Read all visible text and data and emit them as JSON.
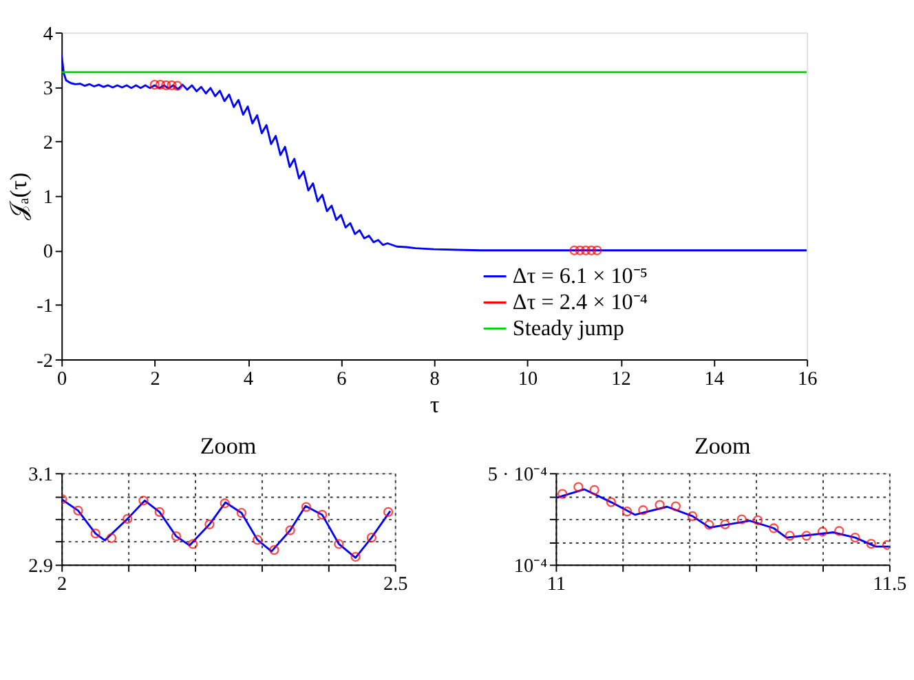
{
  "chart_data": [
    {
      "type": "line",
      "xlabel": "τ",
      "ylabel": "𝒥ₐ(τ)",
      "xlim": [
        0,
        16
      ],
      "ylim": [
        -2,
        4
      ],
      "xticks": [
        0,
        2,
        4,
        6,
        8,
        10,
        12,
        14,
        16
      ],
      "yticks": [
        -2,
        -1,
        0,
        1,
        2,
        3,
        4
      ],
      "grid": false,
      "legend": "bottom right",
      "series": [
        {
          "name": "Δτ = 6.1 × 10⁻⁵",
          "type": "line",
          "color": "#0000ff",
          "x": [
            0,
            0.05,
            0.1,
            0.2,
            0.3,
            0.4,
            0.5,
            0.6,
            0.7,
            0.8,
            0.9,
            1.0,
            1.1,
            1.2,
            1.3,
            1.4,
            1.5,
            1.6,
            1.7,
            1.8,
            1.9,
            2.0,
            2.1,
            2.2,
            2.3,
            2.4,
            2.5,
            2.6,
            2.7,
            2.8,
            2.9,
            3.0,
            3.1,
            3.2,
            3.3,
            3.4,
            3.5,
            3.6,
            3.7,
            3.8,
            3.9,
            4.0,
            4.1,
            4.2,
            4.3,
            4.4,
            4.5,
            4.6,
            4.7,
            4.8,
            4.9,
            5.0,
            5.1,
            5.2,
            5.3,
            5.4,
            5.5,
            5.6,
            5.7,
            5.8,
            5.9,
            6.0,
            6.1,
            6.2,
            6.3,
            6.4,
            6.5,
            6.6,
            6.7,
            6.8,
            6.9,
            7.0,
            7.2,
            7.4,
            7.6,
            7.8,
            8.0,
            8.5,
            9,
            10,
            12,
            16
          ],
          "values": [
            3.6,
            3.25,
            3.12,
            3.07,
            3.05,
            3.06,
            3.02,
            3.05,
            3.01,
            3.04,
            3.0,
            3.03,
            2.99,
            3.03,
            2.99,
            3.03,
            2.98,
            3.03,
            2.98,
            3.03,
            2.98,
            3.03,
            2.98,
            3.03,
            2.97,
            3.03,
            2.96,
            3.04,
            2.95,
            3.03,
            2.92,
            3.0,
            2.88,
            2.98,
            2.83,
            2.93,
            2.74,
            2.86,
            2.63,
            2.76,
            2.49,
            2.64,
            2.33,
            2.48,
            2.15,
            2.3,
            1.95,
            2.1,
            1.75,
            1.9,
            1.53,
            1.68,
            1.32,
            1.45,
            1.1,
            1.23,
            0.9,
            1.02,
            0.72,
            0.82,
            0.56,
            0.65,
            0.42,
            0.5,
            0.3,
            0.37,
            0.22,
            0.27,
            0.15,
            0.19,
            0.1,
            0.13,
            0.07,
            0.06,
            0.04,
            0.03,
            0.02,
            0.01,
            0,
            0,
            0,
            0
          ]
        },
        {
          "name": "Δτ = 2.4 × 10⁻⁴",
          "type": "scatter",
          "marker": "circle",
          "color": "#ff0000",
          "x": [
            2.001,
            2.123,
            2.245,
            2.367,
            2.49,
            11.01,
            11.131,
            11.254,
            11.376,
            11.497
          ],
          "values": [
            3.04,
            3.04,
            3.03,
            3.03,
            3.02,
            0,
            0,
            0,
            0,
            0
          ]
        },
        {
          "name": "Steady jump",
          "type": "line",
          "color": "#00cc00",
          "x": [
            0,
            16
          ],
          "values": [
            3.27,
            3.27
          ]
        }
      ]
    },
    {
      "type": "line",
      "title": "Zoom",
      "xlim": [
        2,
        2.5
      ],
      "ylim": [
        2.9,
        3.1
      ],
      "grid": true,
      "xticks": [
        2,
        {
          "value": 2.1,
          "label": null
        },
        {
          "value": 2.2,
          "label": null
        },
        {
          "value": 2.3,
          "label": null
        },
        {
          "value": 2.4,
          "label": null
        },
        2.5
      ],
      "yticks": [
        2.9,
        {
          "value": 2.95,
          "label": null
        },
        {
          "value": 3.0,
          "label": null
        },
        {
          "value": 3.05,
          "label": null
        },
        3.1
      ],
      "series": [
        {
          "type": "line",
          "color": "#0000ff",
          "x": [
            2.0,
            2.025,
            2.051,
            2.065,
            2.099,
            2.125,
            2.147,
            2.172,
            2.192,
            2.222,
            2.246,
            2.27,
            2.294,
            2.315,
            2.343,
            2.366,
            2.391,
            2.416,
            2.441,
            2.465,
            2.493
          ],
          "values": [
            3.043,
            3.018,
            2.968,
            2.953,
            3.0,
            3.04,
            3.015,
            2.962,
            2.942,
            2.988,
            3.036,
            3.013,
            2.954,
            2.929,
            2.975,
            3.028,
            3.009,
            2.945,
            2.915,
            2.959,
            3.017
          ]
        },
        {
          "type": "scatter",
          "marker": "circle",
          "color": "#ff0000",
          "x": [
            2.001,
            2.025,
            2.051,
            2.075,
            2.099,
            2.123,
            2.147,
            2.172,
            2.197,
            2.222,
            2.245,
            2.27,
            2.294,
            2.319,
            2.343,
            2.367,
            2.391,
            2.416,
            2.441,
            2.465,
            2.49
          ],
          "values": [
            3.043,
            3.018,
            2.968,
            2.958,
            3.0,
            3.04,
            3.015,
            2.962,
            2.945,
            2.988,
            3.034,
            3.013,
            2.954,
            2.932,
            2.975,
            3.026,
            3.009,
            2.945,
            2.917,
            2.959,
            3.015
          ]
        }
      ]
    },
    {
      "type": "line",
      "title": "Zoom",
      "xlim": [
        11,
        11.5
      ],
      "ylim": [
        0.0001,
        0.0005
      ],
      "grid": true,
      "xticks": [
        11,
        {
          "value": 11.1,
          "label": null
        },
        {
          "value": 11.2,
          "label": null
        },
        {
          "value": 11.3,
          "label": null
        },
        {
          "value": 11.4,
          "label": null
        },
        11.5
      ],
      "yticks": [
        {
          "value": 0.0001,
          "label": "10⁻⁴"
        },
        {
          "value": 0.0002,
          "label": null
        },
        {
          "value": 0.0003,
          "label": null
        },
        {
          "value": 0.0004,
          "label": null
        },
        {
          "value": 0.0005,
          "label": "5 · 10⁻⁴"
        }
      ],
      "series": [
        {
          "type": "line",
          "color": "#0000ff",
          "x": [
            11.0,
            11.043,
            11.083,
            11.119,
            11.167,
            11.205,
            11.231,
            11.291,
            11.327,
            11.346,
            11.416,
            11.449,
            11.48,
            11.5
          ],
          "values": [
            0.000391,
            0.000429,
            0.000373,
            0.000318,
            0.000353,
            0.000312,
            0.000262,
            0.000292,
            0.000259,
            0.000218,
            0.000241,
            0.000218,
            0.000179,
            0.000179
          ]
        },
        {
          "type": "scatter",
          "marker": "circle",
          "color": "#ff0000",
          "x": [
            11.01,
            11.034,
            11.058,
            11.083,
            11.107,
            11.131,
            11.156,
            11.18,
            11.205,
            11.23,
            11.254,
            11.279,
            11.303,
            11.327,
            11.351,
            11.376,
            11.4,
            11.425,
            11.449,
            11.473,
            11.497
          ],
          "values": [
            0.000409,
            0.000439,
            0.000426,
            0.000373,
            0.000332,
            0.000338,
            0.000361,
            0.000355,
            0.000312,
            0.000274,
            0.000276,
            0.000298,
            0.000294,
            0.000259,
            0.000226,
            0.000226,
            0.000244,
            0.000247,
            0.000218,
            0.000191,
            0.000186
          ]
        }
      ]
    }
  ]
}
